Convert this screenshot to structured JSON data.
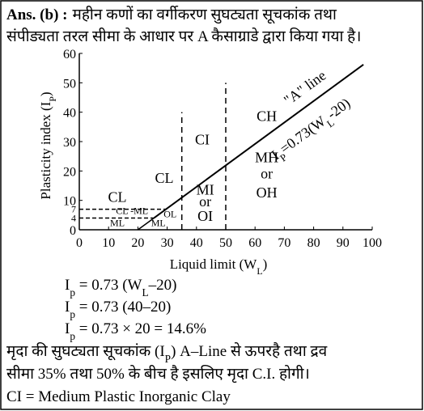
{
  "answer": {
    "label": "Ans. (b) :",
    "line1": "महीन कणों का वर्गीकरण सुघट्यता सूचकांक तथा",
    "line2": "संपीड्यता तरल सीमा के आधार पर A कैसाग्राडे द्वारा किया गया है।"
  },
  "chart": {
    "type": "plasticity-chart",
    "x_label": [
      "Liquid limit (W",
      "L",
      ")"
    ],
    "y_label": [
      "Plasticity index (I",
      "P",
      ")"
    ],
    "xlim": [
      0,
      100
    ],
    "ylim": [
      0,
      60
    ],
    "xticks": [
      0,
      10,
      20,
      30,
      40,
      50,
      60,
      70,
      80,
      90,
      100
    ],
    "yticks": [
      0,
      4,
      7,
      10,
      20,
      30,
      40,
      50,
      60
    ],
    "a_line": {
      "x": [
        25.5,
        97
      ],
      "y": [
        4,
        56.2
      ]
    },
    "a_line_label": "\"A\" line",
    "a_line_equation": [
      "I",
      "P",
      "=0.73(W",
      "L",
      "-20)"
    ],
    "boundaries": [
      {
        "x": [
          35,
          35
        ],
        "y": [
          0,
          40
        ]
      },
      {
        "x": [
          50,
          50
        ],
        "y": [
          0,
          50
        ]
      },
      {
        "x": [
          0,
          29.6
        ],
        "y": [
          7,
          7
        ]
      },
      {
        "x": [
          0,
          25.5
        ],
        "y": [
          4,
          4
        ]
      },
      {
        "x": [
          20,
          25.5
        ],
        "y": [
          0,
          4
        ]
      }
    ],
    "zones": [
      "CL",
      "CL -ML",
      "ML",
      "ML",
      "OL",
      "CL",
      "CI",
      "MI",
      "or",
      "OI",
      "CH",
      "MH",
      "or",
      "OH"
    ]
  },
  "equations": [
    [
      "I",
      "p",
      " = 0.73 (W",
      "L",
      "–20)"
    ],
    [
      "I",
      "p",
      " = 0.73 (40–20)"
    ],
    [
      "I",
      "p",
      " = 0.73 × 20 = 14.6%"
    ]
  ],
  "body": [
    [
      "मृदा की सुघट्यता सूचकांक (I",
      "P",
      ") A–Line से ऊपरहै तथा द्रव"
    ],
    [
      "सीमा 35% तथा 50% के बीच है इसलिए मृदा C.I. होगी।"
    ],
    [
      "CI = Medium Plastic Inorganic Clay"
    ]
  ]
}
